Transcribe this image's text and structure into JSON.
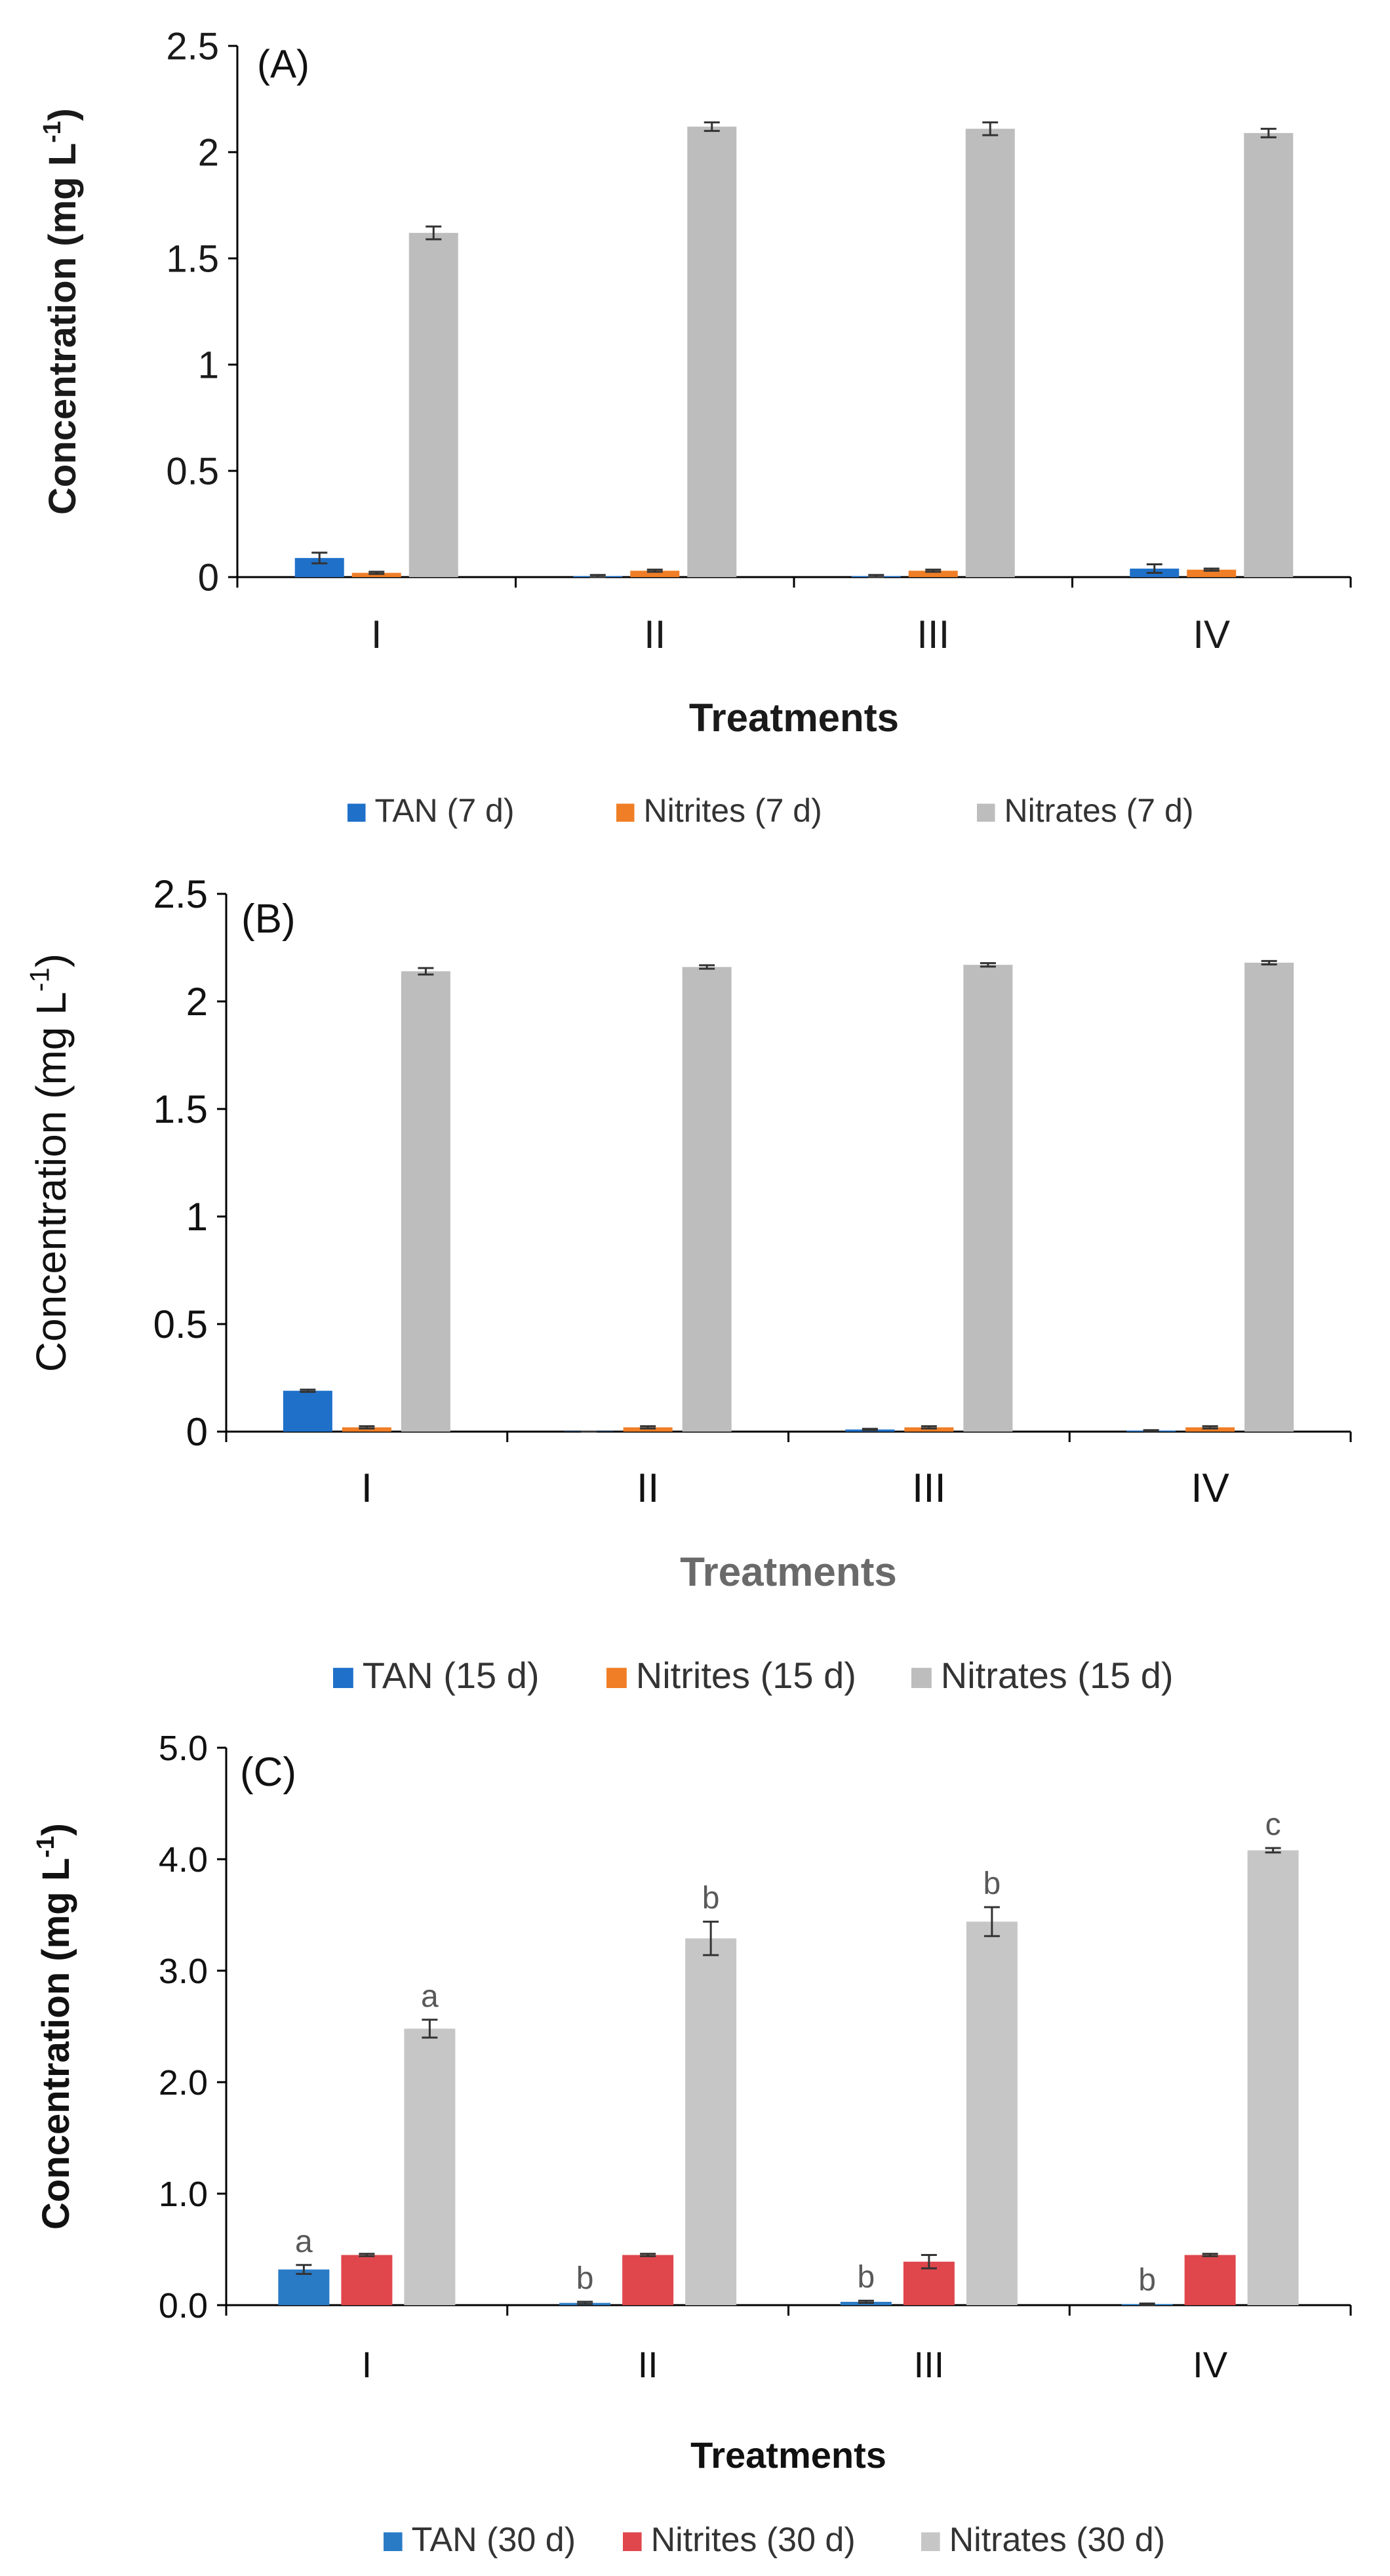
{
  "chart_data": [
    {
      "type": "bar",
      "panel_label": "(A)",
      "xlabel": "Treatments",
      "ylabel": "Concentration (mg L",
      "ylabel_sup": "-1",
      "categories": [
        "I",
        "II",
        "III",
        "IV"
      ],
      "ylim": [
        0,
        2.5
      ],
      "yticks": [
        "0",
        "0.5",
        "1",
        "1.5",
        "2",
        "2.5"
      ],
      "grid": false,
      "legend_position": "bottom",
      "series": [
        {
          "name": "TAN (7 d)",
          "color": "#1f70c9",
          "values": [
            0.09,
            0.005,
            0.005,
            0.04
          ],
          "errors": [
            0.025,
            0.005,
            0.005,
            0.02
          ]
        },
        {
          "name": "Nitrites (7 d)",
          "color": "#f07e26",
          "values": [
            0.02,
            0.03,
            0.03,
            0.035
          ],
          "errors": [
            0.005,
            0.005,
            0.005,
            0.005
          ]
        },
        {
          "name": "Nitrates (7 d)",
          "color": "#bdbdbd",
          "values": [
            1.62,
            2.12,
            2.11,
            2.09
          ],
          "errors": [
            0.03,
            0.02,
            0.03,
            0.02
          ]
        }
      ],
      "annotations": [
        [],
        [],
        []
      ]
    },
    {
      "type": "bar",
      "panel_label": "(B)",
      "xlabel": "Treatments",
      "ylabel": "Concentration (mg L",
      "ylabel_sup": "-1",
      "categories": [
        "I",
        "II",
        "III",
        "IV"
      ],
      "ylim": [
        0,
        2.5
      ],
      "yticks": [
        "0",
        "0.5",
        "1",
        "1.5",
        "2",
        "2.5"
      ],
      "grid": false,
      "legend_position": "bottom",
      "series": [
        {
          "name": "TAN (15 d)",
          "color": "#1f70c9",
          "values": [
            0.19,
            0.0,
            0.01,
            0.005
          ],
          "errors": [
            0.005,
            0.0,
            0.003,
            0.002
          ]
        },
        {
          "name": "Nitrites (15 d)",
          "color": "#f07e26",
          "values": [
            0.02,
            0.02,
            0.02,
            0.02
          ],
          "errors": [
            0.005,
            0.005,
            0.005,
            0.005
          ]
        },
        {
          "name": "Nitrates (15 d)",
          "color": "#bdbdbd",
          "values": [
            2.14,
            2.16,
            2.17,
            2.18
          ],
          "errors": [
            0.015,
            0.008,
            0.008,
            0.008
          ]
        }
      ],
      "annotations": [
        [],
        [],
        []
      ]
    },
    {
      "type": "bar",
      "panel_label": "(C)",
      "xlabel": "Treatments",
      "ylabel": "Concentration (mg L",
      "ylabel_sup": "-1",
      "categories": [
        "I",
        "II",
        "III",
        "IV"
      ],
      "ylim": [
        0,
        5.0
      ],
      "yticks": [
        "0.0",
        "1.0",
        "2.0",
        "3.0",
        "4.0",
        "5.0"
      ],
      "grid": false,
      "legend_position": "bottom",
      "series": [
        {
          "name": "TAN (30 d)",
          "color": "#2a7bc6",
          "values": [
            0.32,
            0.02,
            0.03,
            0.01
          ],
          "errors": [
            0.04,
            0.01,
            0.01,
            0.005
          ]
        },
        {
          "name": "Nitrites (30 d)",
          "color": "#e0474c",
          "values": [
            0.45,
            0.45,
            0.39,
            0.45
          ],
          "errors": [
            0.01,
            0.01,
            0.06,
            0.01
          ]
        },
        {
          "name": "Nitrates (30 d)",
          "color": "#c6c6c6",
          "values": [
            2.48,
            3.29,
            3.44,
            4.08
          ],
          "errors": [
            0.08,
            0.15,
            0.13,
            0.02
          ]
        }
      ],
      "annotations": [
        [
          "a",
          "b",
          "b",
          "b"
        ],
        [],
        [
          "a",
          "b",
          "b",
          "c"
        ]
      ]
    }
  ]
}
